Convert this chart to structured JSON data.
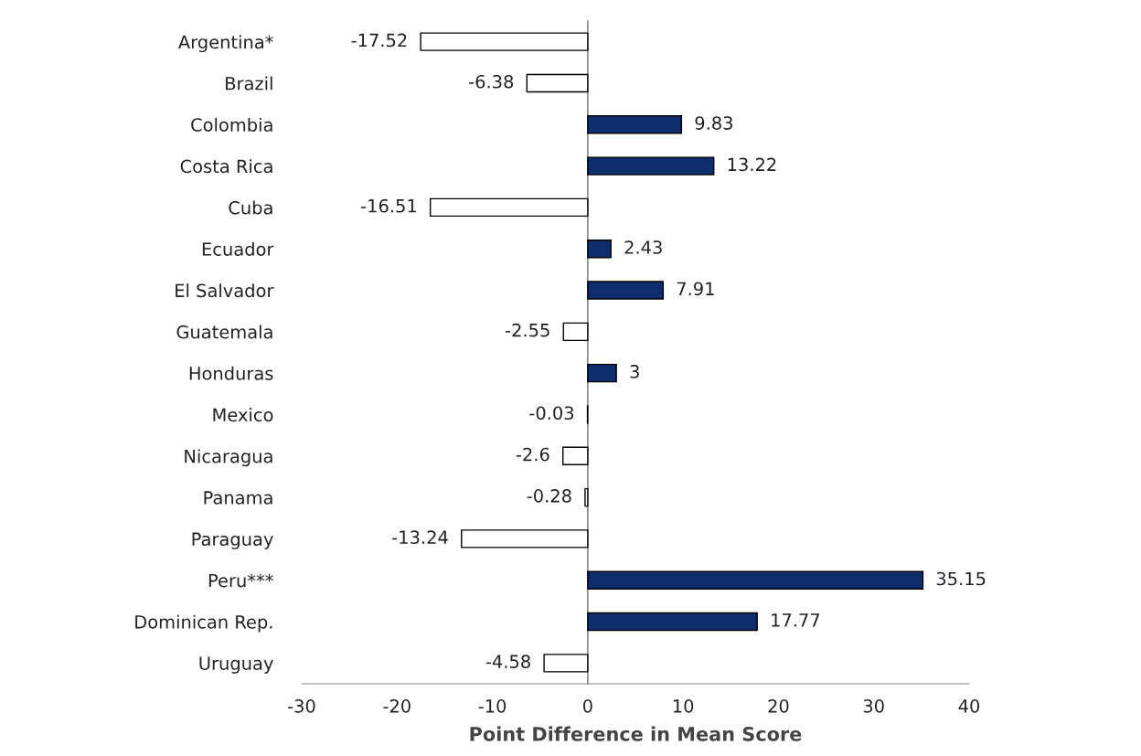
{
  "chart_data": {
    "type": "bar",
    "orientation": "horizontal",
    "xlabel": "Point Difference in Mean Score",
    "categories": [
      "Argentina*",
      "Brazil",
      "Colombia",
      "Costa Rica",
      "Cuba",
      "Ecuador",
      "El Salvador",
      "Guatemala",
      "Honduras",
      "Mexico",
      "Nicaragua",
      "Panama",
      "Paraguay",
      "Peru***",
      "Dominican Rep.",
      "Uruguay"
    ],
    "values": [
      -17.52,
      -6.38,
      9.83,
      13.22,
      -16.51,
      2.43,
      7.91,
      -2.55,
      3,
      -0.03,
      -2.6,
      -0.28,
      -13.24,
      35.15,
      17.77,
      -4.58
    ],
    "colors": [
      "#ffffff",
      "#ffffff",
      "#0d2d6c",
      "#0d2d6c",
      "#ffffff",
      "#0d2d6c",
      "#0d2d6c",
      "#ffffff",
      "#0d2d6c",
      "#ffffff",
      "#ffffff",
      "#ffffff",
      "#ffffff",
      "#0d2d6c",
      "#0d2d6c",
      "#ffffff"
    ],
    "xlim": [
      -30,
      40
    ],
    "xticks": [
      -30,
      -20,
      -10,
      0,
      10,
      20,
      30,
      40
    ],
    "data_labels": true
  }
}
